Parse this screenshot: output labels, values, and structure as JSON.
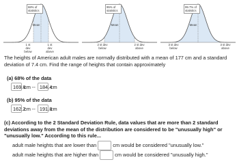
{
  "diagrams": [
    {
      "percent_label": "68% of statistics",
      "mean_label": "Mean",
      "left_label": "1 st dev below",
      "right_label": "1 st dev above"
    },
    {
      "percent_label": "95% of statistics",
      "mean_label": "Mean",
      "left_label": "2 st dev below",
      "right_label": "2 st dev above"
    },
    {
      "percent_label": "99.7% of statistics",
      "mean_label": "Mean",
      "left_label": "3 st dev below",
      "right_label": "3 st dev above"
    }
  ],
  "problem": {
    "intro": "The heights of American adult males are normally distributed with a mean of 177 cm and a standard deviation of 7.4 cm. Find the range of heights that contain approximately",
    "part_a": {
      "label": "(a) 68% of the data",
      "low": "169.6",
      "sep": "cm --",
      "high": "184.4",
      "unit": "cm"
    },
    "part_b": {
      "label": "(b) 95% of the data",
      "low": "162.2",
      "sep": "cm --",
      "high": "191.8",
      "unit": "cm"
    },
    "part_c": {
      "text": "(c) According to the 2 Standard Deviation Rule, data values that are more than 2 standard deviations away from the mean of the distribution are considered to be \"unusually high\" or \"unusually low.\" According to this rule...",
      "low_before": "adult male heights that are lower than",
      "low_after": "cm would be considered \"unusually low.\"",
      "high_before": "adult male heights that are higher than",
      "high_after": "cm would be considered \"unusually high.\""
    }
  }
}
